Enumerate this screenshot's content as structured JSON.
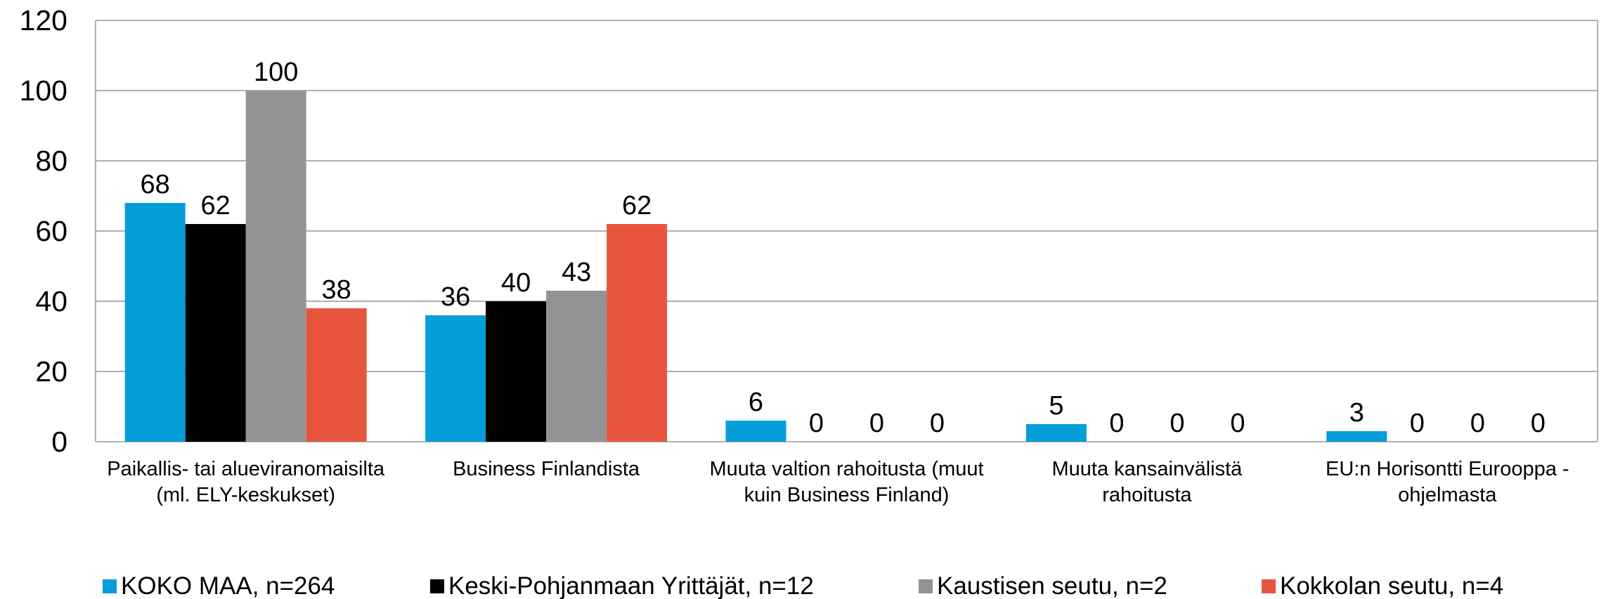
{
  "chart_data": {
    "type": "bar",
    "categories": [
      "Paikallis- tai alueviranomaisilta (ml. ELY-keskukset)",
      "Business Finlandista",
      "Muuta valtion rahoitusta (muut kuin Business Finland)",
      "Muuta kansainvälistä rahoitusta",
      "EU:n Horisontti Eurooppa -ohjelmasta"
    ],
    "series": [
      {
        "name": "KOKO MAA, n=264",
        "color": "#049fd9",
        "values": [
          68,
          36,
          6,
          5,
          3
        ]
      },
      {
        "name": "Keski-Pohjanmaan Yrittäjät, n=12",
        "color": "#000000",
        "values": [
          62,
          40,
          0,
          0,
          0
        ]
      },
      {
        "name": "Kaustisen seutu, n=2",
        "color": "#939393",
        "values": [
          100,
          43,
          0,
          0,
          0
        ]
      },
      {
        "name": "Kokkolan seutu, n=4",
        "color": "#e8553e",
        "values": [
          38,
          62,
          0,
          0,
          0
        ]
      }
    ],
    "ylim": [
      0,
      120
    ],
    "yticks": [
      0,
      20,
      40,
      60,
      80,
      100,
      120
    ],
    "grid": true,
    "legend": "bottom"
  }
}
